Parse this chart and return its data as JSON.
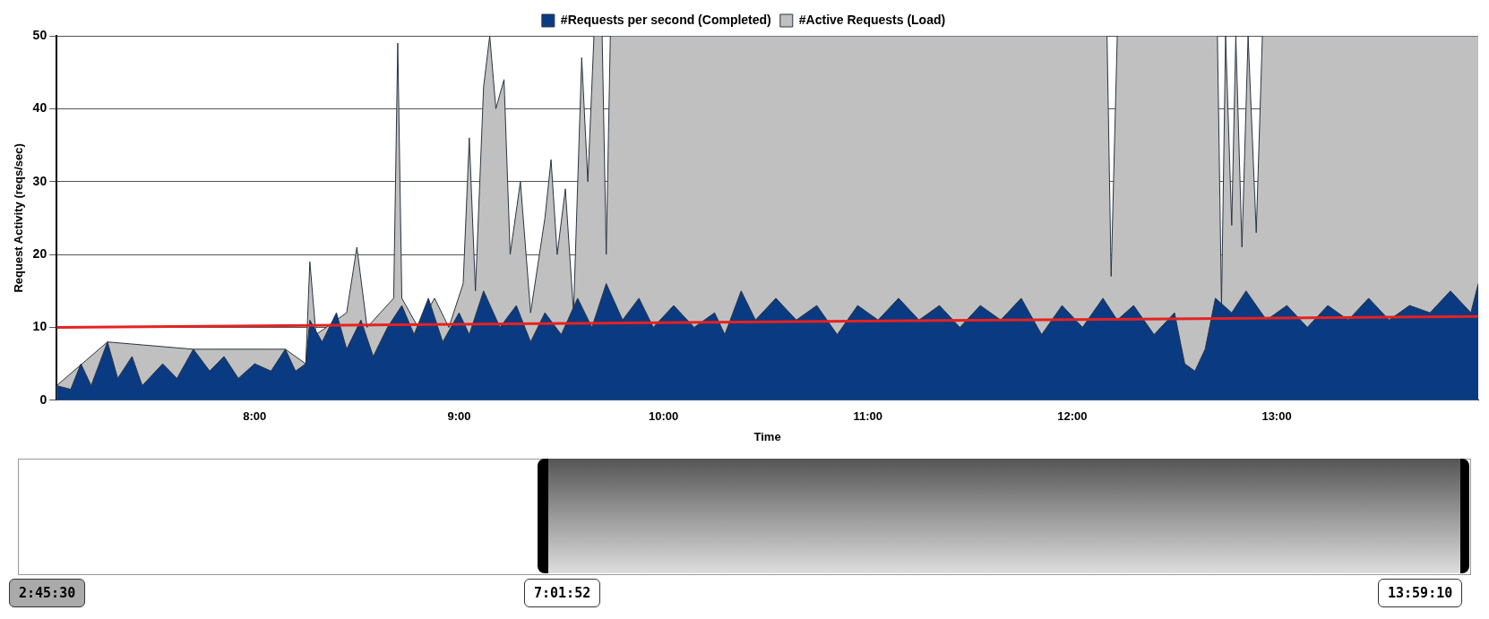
{
  "chart_data": {
    "type": "area",
    "xlabel": "Time",
    "ylabel": "Request Activity (reqs/sec)",
    "xlim": [
      7.031,
      13.986
    ],
    "ylim": [
      0,
      50
    ],
    "xticks": [
      {
        "value": 8,
        "label": "8:00"
      },
      {
        "value": 9,
        "label": "9:00"
      },
      {
        "value": 10,
        "label": "10:00"
      },
      {
        "value": 11,
        "label": "11:00"
      },
      {
        "value": 12,
        "label": "12:00"
      },
      {
        "value": 13,
        "label": "13:00"
      }
    ],
    "yticks": [
      0,
      10,
      20,
      30,
      40,
      50
    ],
    "grid": "y",
    "legend": "top",
    "marker": "none",
    "series": [
      {
        "name": "#Requests per second (Completed)",
        "color": "#0a3a82",
        "x": [
          7.031,
          7.1,
          7.15,
          7.2,
          7.28,
          7.33,
          7.4,
          7.45,
          7.55,
          7.62,
          7.7,
          7.78,
          7.85,
          7.92,
          8.0,
          8.08,
          8.15,
          8.2,
          8.25,
          8.27,
          8.33,
          8.4,
          8.45,
          8.52,
          8.58,
          8.65,
          8.72,
          8.78,
          8.85,
          8.92,
          9.0,
          9.05,
          9.12,
          9.2,
          9.28,
          9.35,
          9.42,
          9.5,
          9.58,
          9.65,
          9.72,
          9.8,
          9.88,
          9.95,
          10.05,
          10.15,
          10.25,
          10.3,
          10.38,
          10.45,
          10.55,
          10.65,
          10.75,
          10.85,
          10.95,
          11.05,
          11.15,
          11.25,
          11.35,
          11.45,
          11.55,
          11.65,
          11.75,
          11.85,
          11.95,
          12.05,
          12.15,
          12.22,
          12.3,
          12.4,
          12.5,
          12.55,
          12.6,
          12.65,
          12.7,
          12.78,
          12.85,
          12.95,
          13.05,
          13.15,
          13.25,
          13.35,
          13.45,
          13.55,
          13.65,
          13.75,
          13.85,
          13.95,
          13.986
        ],
        "values": [
          2,
          1.5,
          5,
          2,
          8,
          3,
          6,
          2,
          5,
          3,
          7,
          4,
          6,
          3,
          5,
          4,
          7,
          4,
          5,
          11,
          8,
          12,
          7,
          11,
          6,
          10,
          13,
          9,
          14,
          8,
          12,
          9,
          15,
          10,
          13,
          8,
          12,
          9,
          14,
          10,
          16,
          11,
          14,
          10,
          13,
          10,
          12,
          9,
          15,
          11,
          14,
          11,
          13,
          9,
          13,
          11,
          14,
          11,
          13,
          10,
          13,
          11,
          14,
          9,
          13,
          10,
          14,
          11,
          13,
          9,
          12,
          5,
          4,
          7,
          14,
          12,
          15,
          11,
          13,
          10,
          13,
          11,
          14,
          11,
          13,
          12,
          15,
          12,
          16
        ]
      },
      {
        "name": "#Active Requests (Load)",
        "color": "#c0c0c0",
        "x": [
          7.031,
          7.28,
          7.7,
          8.15,
          8.25,
          8.27,
          8.3,
          8.45,
          8.5,
          8.55,
          8.68,
          8.7,
          8.72,
          8.8,
          8.88,
          8.95,
          9.02,
          9.05,
          9.08,
          9.12,
          9.15,
          9.18,
          9.22,
          9.25,
          9.3,
          9.35,
          9.42,
          9.45,
          9.48,
          9.52,
          9.56,
          9.6,
          9.63,
          9.66,
          9.7,
          9.72,
          9.74,
          12.17,
          12.19,
          12.22,
          12.71,
          12.73,
          12.75,
          12.78,
          12.8,
          12.83,
          12.86,
          12.9,
          12.93,
          13.986
        ],
        "values": [
          2,
          8,
          7,
          7,
          5,
          19,
          9,
          12,
          21,
          10,
          14,
          49,
          14,
          10,
          14,
          10,
          16,
          36,
          15,
          43,
          50,
          40,
          44,
          20,
          30,
          12,
          25,
          33,
          20,
          29,
          12,
          47,
          30,
          50,
          50,
          20,
          50,
          50,
          17,
          50,
          50,
          13,
          50,
          24,
          50,
          21,
          50,
          23,
          50,
          50
        ]
      },
      {
        "type": "line",
        "color": "#e52222",
        "x": [
          7.031,
          13.986
        ],
        "values": [
          10,
          11.5
        ]
      }
    ],
    "annotations": [
      "2:45:30",
      "7:01:52",
      "13:59:10"
    ]
  }
}
